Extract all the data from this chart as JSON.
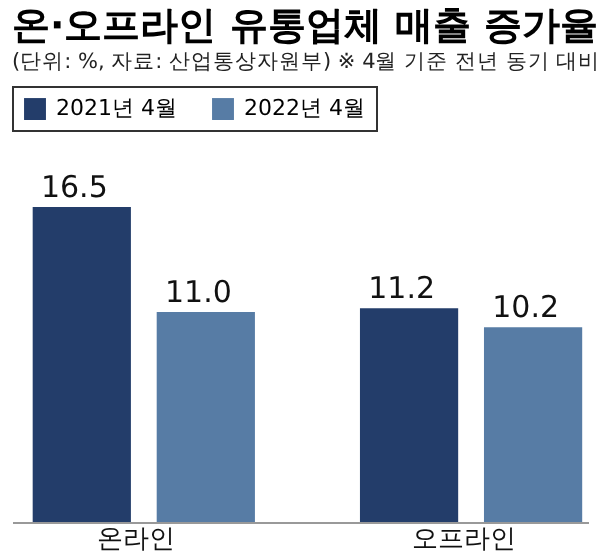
{
  "chart_data": {
    "type": "bar",
    "title": "온·오프라인 유통업체 매출 증가율",
    "subtitle": "(단위: %, 자료: 산업통상자원부) ※ 4월 기준 전년 동기 대비",
    "categories": [
      "온라인",
      "오프라인"
    ],
    "series": [
      {
        "name": "2021년 4월",
        "color": "#233d6a",
        "values": [
          16.5,
          11.2
        ],
        "value_labels": [
          "16.5",
          "11.2"
        ]
      },
      {
        "name": "2022년 4월",
        "color": "#577ca5",
        "values": [
          11.0,
          10.2
        ],
        "value_labels": [
          "11.0",
          "10.2"
        ]
      }
    ],
    "legend": "top left",
    "grid": false
  }
}
